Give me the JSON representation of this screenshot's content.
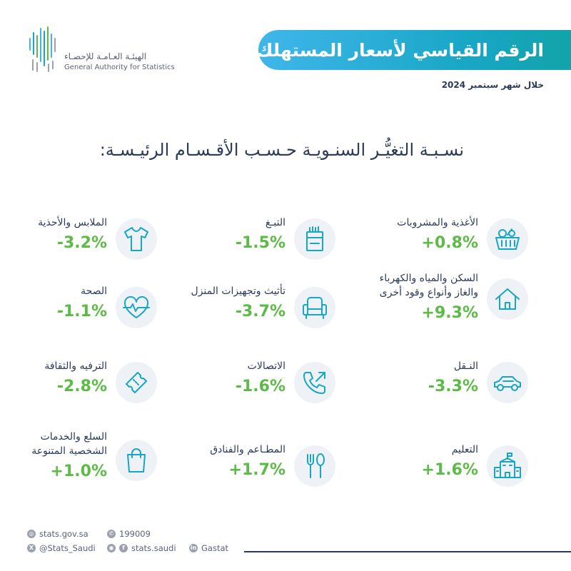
{
  "logo": {
    "name_ar": "الهيئـة العـامـة للإحصـاء",
    "name_en": "General Authority for Statistics"
  },
  "header": {
    "title": "الرقم القياسي لأسعار المستهلك",
    "period": "خلال شهر سبتمبر 2024"
  },
  "subtitle": "نسـبـة التغيُّـر السنـويـة حـسـب الأقـسـام الرئيـسـة:",
  "categories": [
    {
      "label": "الأغذية والمشروبات",
      "value": "+0.8%",
      "icon": "food-basket-icon"
    },
    {
      "label": "التبـغ",
      "value": "-1.5%",
      "icon": "cigarettes-icon"
    },
    {
      "label": "الملابس والأحذية",
      "value": "-3.2%",
      "icon": "tshirt-icon"
    },
    {
      "label_line1": "السكن والمياه والكهرباء",
      "label_line2": "والغاز وأنواع وقود أخرى",
      "value": "+9.3%",
      "icon": "house-icon"
    },
    {
      "label": "تأثيث وتجهيزات المنزل",
      "value": "-3.7%",
      "icon": "armchair-icon"
    },
    {
      "label": "الصحة",
      "value": "-1.1%",
      "icon": "heart-pulse-icon"
    },
    {
      "label": "النـقل",
      "value": "-3.3%",
      "icon": "car-icon"
    },
    {
      "label": "الاتصالات",
      "value": "-1.6%",
      "icon": "phone-icon"
    },
    {
      "label": "الترفيه والثقافة",
      "value": "-2.8%",
      "icon": "tickets-icon"
    },
    {
      "label": "التعليم",
      "value": "+1.6%",
      "icon": "school-icon"
    },
    {
      "label": "المطـاعم والفنادق",
      "value": "+1.7%",
      "icon": "fork-spoon-icon"
    },
    {
      "label_line1": "السلع والخدمات",
      "label_line2": "الشخصية المتنوعة",
      "value": "+1.0%",
      "icon": "shopping-bag-icon"
    }
  ],
  "colors": {
    "accent": "#17a6c4",
    "value_green": "#5bbb46",
    "text": "#2b3a5c"
  },
  "footer": {
    "website": "stats.gov.sa",
    "phone": "199009",
    "x_handle": "@Stats_Saudi",
    "social": "stats.saudi",
    "linkedin": "Gastat"
  }
}
